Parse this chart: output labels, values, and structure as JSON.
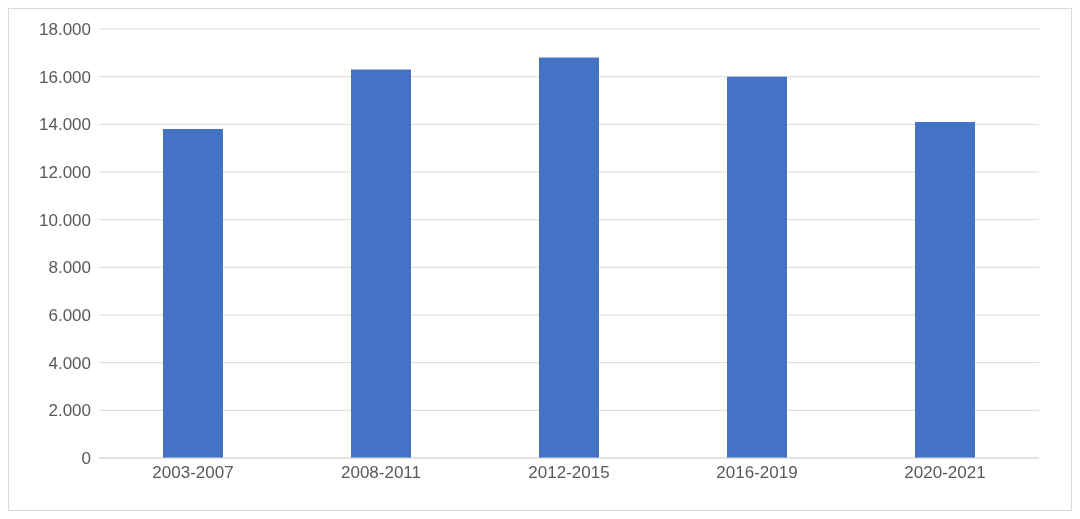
{
  "chart_data": {
    "type": "bar",
    "categories": [
      "2003-2007",
      "2008-2011",
      "2012-2015",
      "2016-2019",
      "2020-2021"
    ],
    "values": [
      13800,
      16300,
      16800,
      16000,
      14100
    ],
    "color": "#4472c4",
    "ylim": [
      0,
      18000
    ],
    "yticks": [
      {
        "value": 0,
        "label": "0"
      },
      {
        "value": 2000,
        "label": "2.000"
      },
      {
        "value": 4000,
        "label": "4.000"
      },
      {
        "value": 6000,
        "label": "6.000"
      },
      {
        "value": 8000,
        "label": "8.000"
      },
      {
        "value": 10000,
        "label": "10.000"
      },
      {
        "value": 12000,
        "label": "12.000"
      },
      {
        "value": 14000,
        "label": "14.000"
      },
      {
        "value": 16000,
        "label": "16.000"
      },
      {
        "value": 18000,
        "label": "18.000"
      }
    ],
    "grid": "y"
  }
}
